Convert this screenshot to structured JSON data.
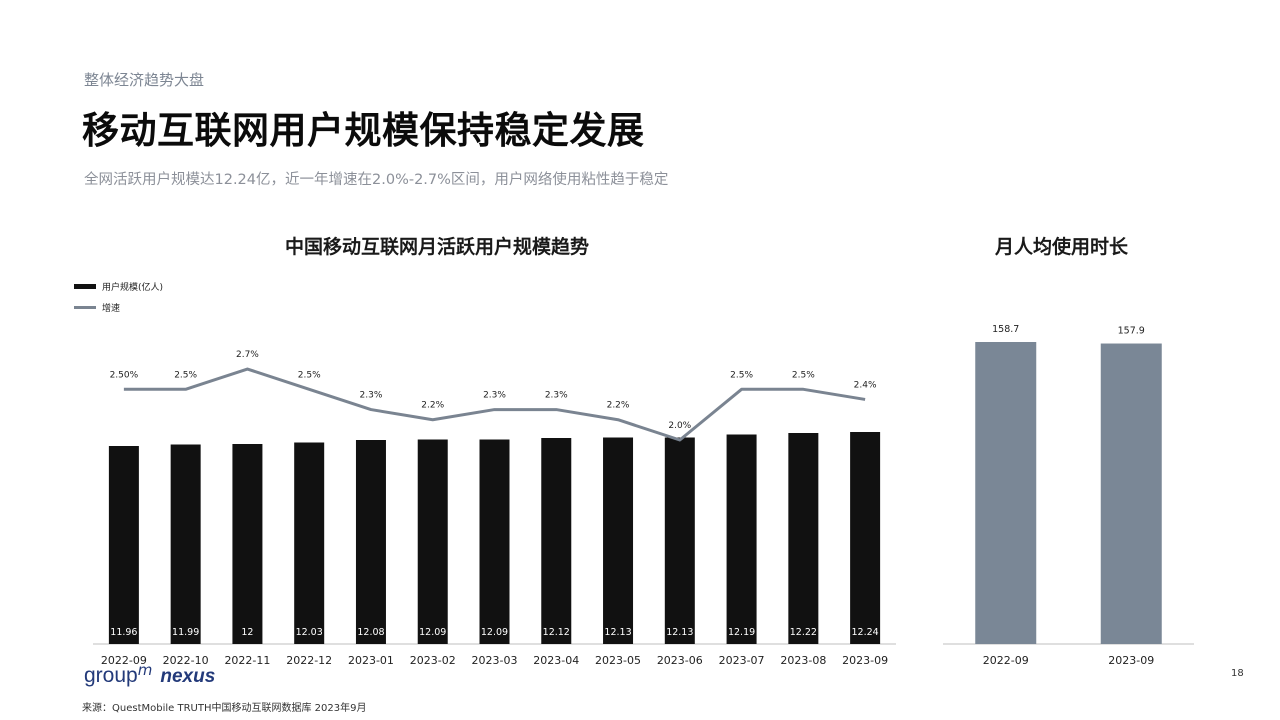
{
  "header": {
    "kicker": "整体经济趋势大盘",
    "title": "移动互联网用户规模保持稳定发展",
    "subtitle": "全网活跃用户规模达12.24亿，近一年增速在2.0%-2.7%区间，用户网络使用粘性趋于稳定"
  },
  "colors": {
    "bars_main": "#111111",
    "line": "#7a8491",
    "bars_side": "#7a8796",
    "axis": "#bfbfbf"
  },
  "chart_data": [
    {
      "type": "bar",
      "title": "中国移动互联网月活跃用户规模趋势",
      "legend_position": "top-left",
      "categories": [
        "2022-09",
        "2022-10",
        "2022-11",
        "2022-12",
        "2023-01",
        "2023-02",
        "2023-03",
        "2023-04",
        "2023-05",
        "2023-06",
        "2023-07",
        "2023-08",
        "2023-09"
      ],
      "series": [
        {
          "name": "用户规模(亿人)",
          "type": "bar",
          "values": [
            11.96,
            11.99,
            12,
            12.03,
            12.08,
            12.09,
            12.09,
            12.12,
            12.13,
            12.13,
            12.19,
            12.22,
            12.24
          ],
          "labels": [
            "11.96",
            "11.99",
            "12",
            "12.03",
            "12.08",
            "12.09",
            "12.09",
            "12.12",
            "12.13",
            "12.13",
            "12.19",
            "12.22",
            "12.24"
          ]
        },
        {
          "name": "增速",
          "type": "line",
          "values": [
            2.5,
            2.5,
            2.7,
            2.5,
            2.3,
            2.2,
            2.3,
            2.3,
            2.2,
            2.0,
            2.5,
            2.5,
            2.4
          ],
          "labels": [
            "2.50%",
            "2.5%",
            "2.7%",
            "2.5%",
            "2.3%",
            "2.2%",
            "2.3%",
            "2.3%",
            "2.2%",
            "2.0%",
            "2.5%",
            "2.5%",
            "2.4%"
          ]
        }
      ]
    },
    {
      "type": "bar",
      "title": "月人均使用时长",
      "categories": [
        "2022-09",
        "2023-09"
      ],
      "values": [
        158.7,
        157.9
      ],
      "labels": [
        "158.7",
        "157.9"
      ]
    }
  ],
  "footer": {
    "logo_groupm": "group",
    "logo_m": "m",
    "logo_nexus": "nexus",
    "source": "来源：QuestMobile TRUTH中国移动互联网数据库 2023年9月",
    "page_number": "18"
  }
}
